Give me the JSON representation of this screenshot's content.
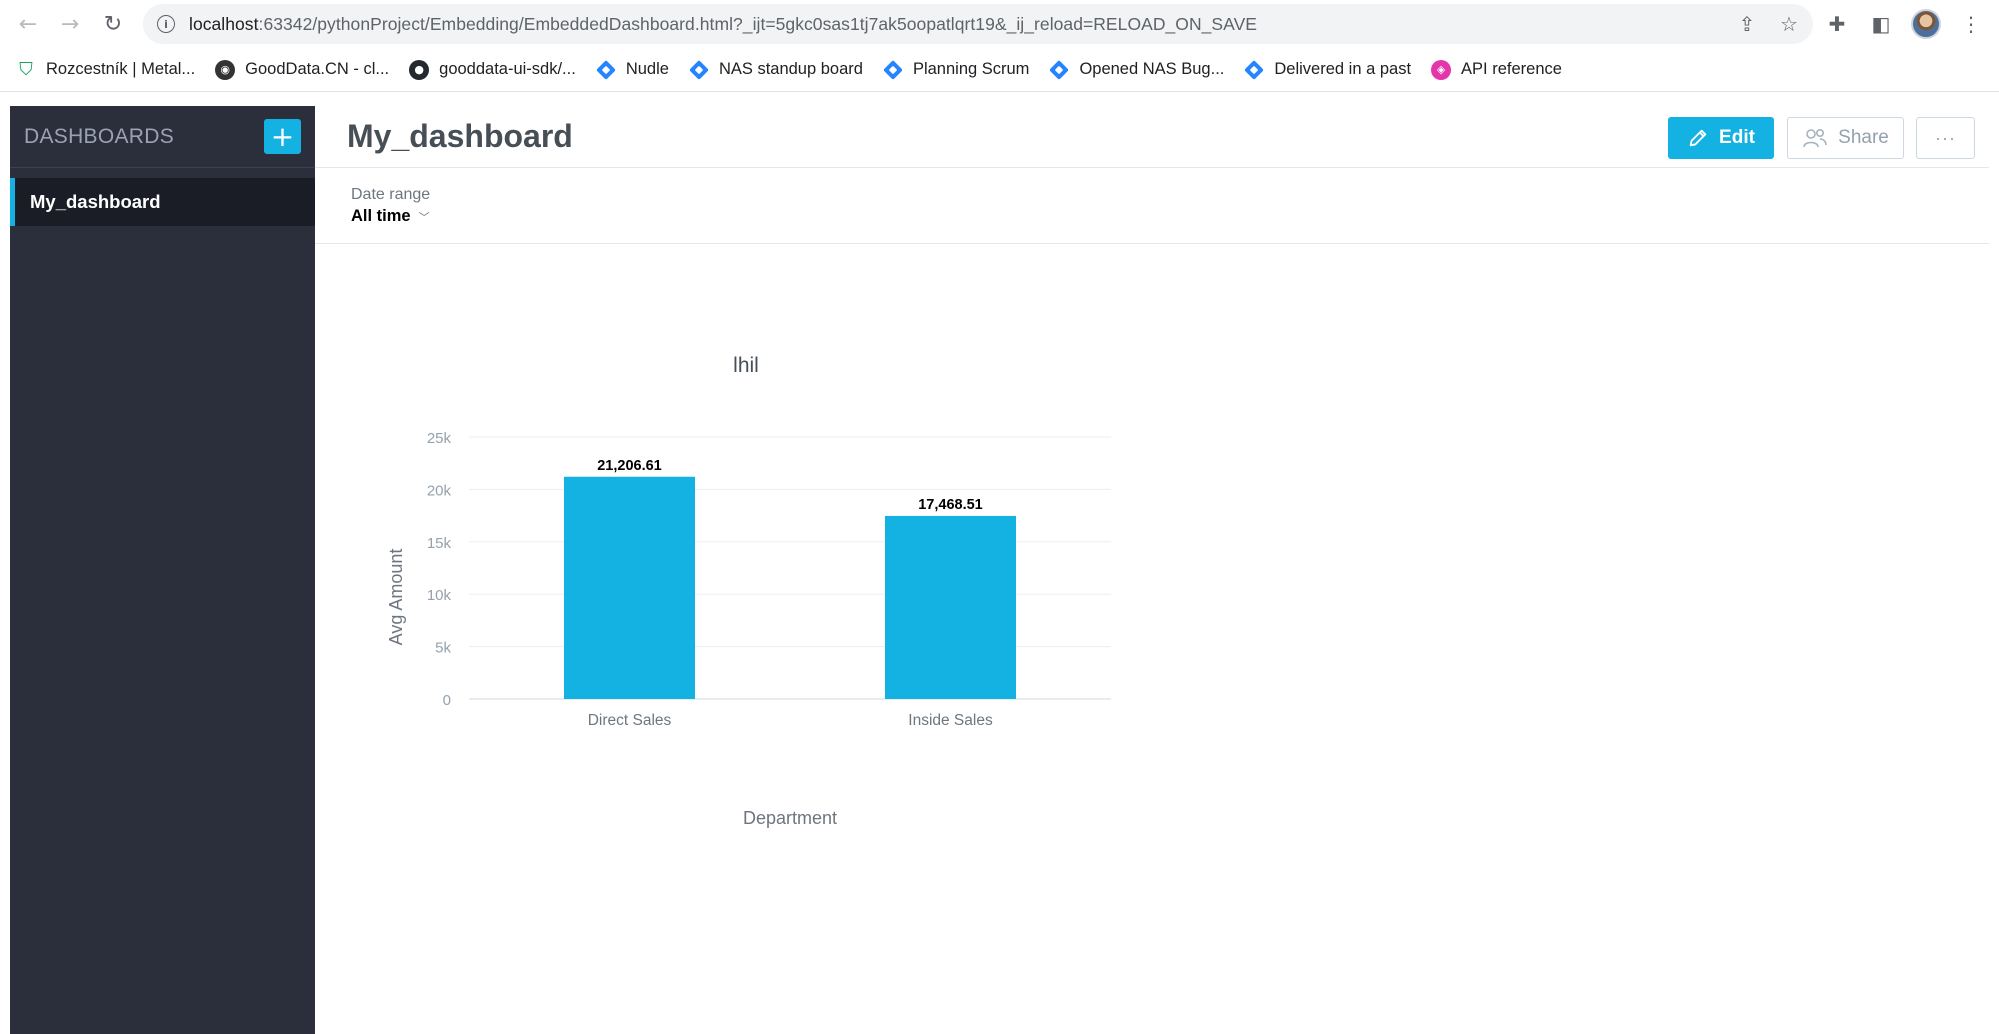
{
  "browser": {
    "url_host": "localhost",
    "url_rest": ":63342/pythonProject/Embedding/EmbeddedDashboard.html?_ijt=5gkc0sas1tj7ak5oopatlqrt19&_ij_reload=RELOAD_ON_SAVE",
    "bookmarks": [
      {
        "label": "Rozcestník | Metal...",
        "icon": "shield-icon"
      },
      {
        "label": "GoodData.CN - cl...",
        "icon": "gooddata-icon"
      },
      {
        "label": "gooddata-ui-sdk/...",
        "icon": "github-icon"
      },
      {
        "label": "Nudle",
        "icon": "jira-icon"
      },
      {
        "label": "NAS standup board",
        "icon": "jira-icon"
      },
      {
        "label": "Planning Scrum",
        "icon": "jira-icon"
      },
      {
        "label": "Opened NAS Bug...",
        "icon": "jira-icon"
      },
      {
        "label": "Delivered in a past",
        "icon": "jira-icon"
      },
      {
        "label": "API reference",
        "icon": "graphql-icon"
      }
    ]
  },
  "sidebar": {
    "title": "DASHBOARDS",
    "add_label": "+",
    "items": [
      {
        "label": "My_dashboard"
      }
    ]
  },
  "header": {
    "title": "My_dashboard",
    "edit_label": "Edit",
    "share_label": "Share",
    "more_label": "···"
  },
  "filter": {
    "label": "Date range",
    "value": "All time"
  },
  "colors": {
    "accent": "#14b2e2",
    "sidebar_bg": "#2b2f3b",
    "bar": "#14b2e2"
  },
  "chart_data": {
    "type": "bar",
    "title": "lhil",
    "categories": [
      "Direct Sales",
      "Inside Sales"
    ],
    "values": [
      21206.61,
      17468.51
    ],
    "value_labels": [
      "21,206.61",
      "17,468.51"
    ],
    "xlabel": "Department",
    "ylabel": "Avg Amount",
    "ylim": [
      0,
      25000
    ],
    "yticks": [
      0,
      5000,
      10000,
      15000,
      20000,
      25000
    ],
    "ytick_labels": [
      "0",
      "5k",
      "10k",
      "15k",
      "20k",
      "25k"
    ],
    "grid": true,
    "legend": "none"
  }
}
